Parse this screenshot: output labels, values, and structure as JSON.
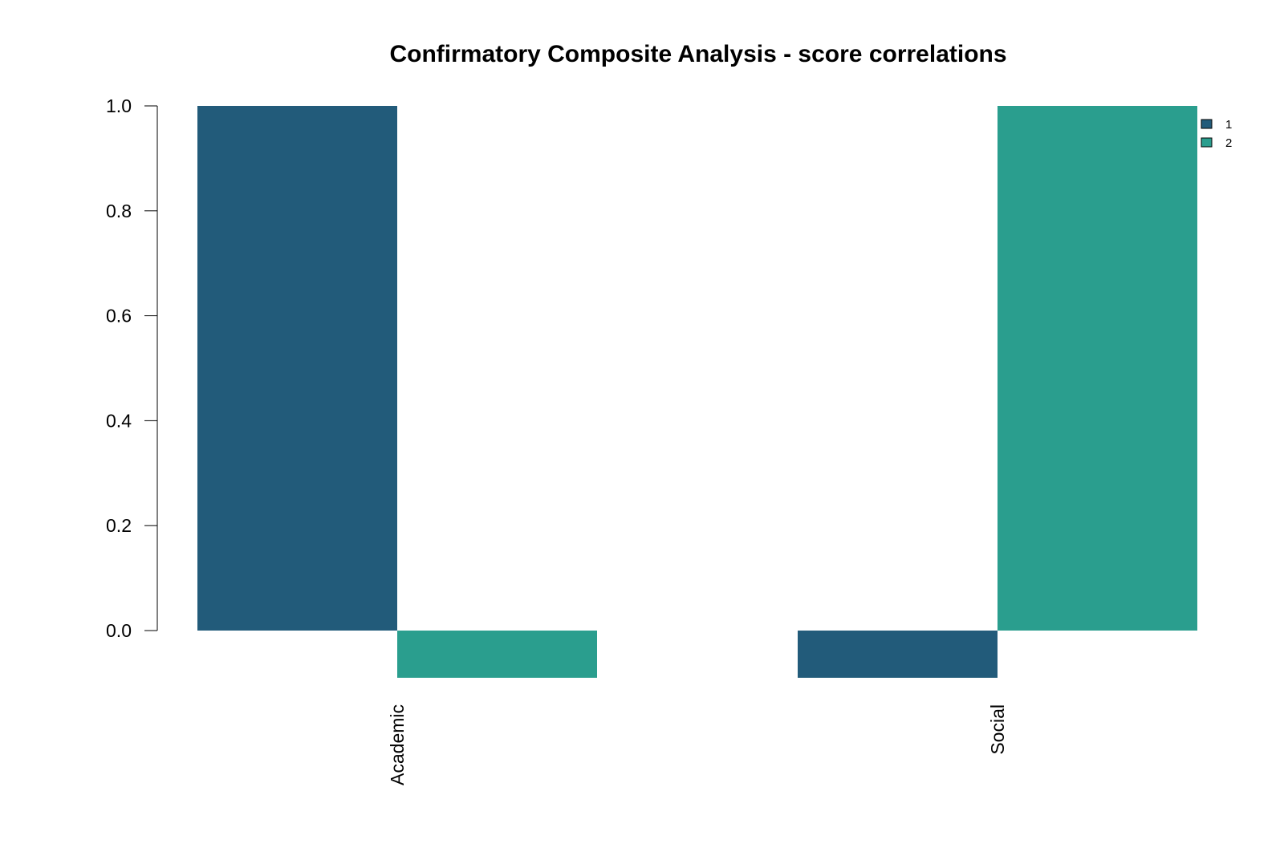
{
  "chart_data": {
    "type": "bar",
    "title": "Confirmatory Composite Analysis - score correlations",
    "xlabel": "",
    "ylabel": "",
    "categories": [
      "Academic",
      "Social"
    ],
    "series": [
      {
        "name": "1",
        "values": [
          1.0,
          -0.09
        ],
        "color": "#225B7A"
      },
      {
        "name": "2",
        "values": [
          -0.09,
          1.0
        ],
        "color": "#2A9E8E"
      }
    ],
    "yticks": [
      0.0,
      0.2,
      0.4,
      0.6,
      0.8,
      1.0
    ],
    "ytick_labels": [
      "0.0",
      "0.2",
      "0.4",
      "0.6",
      "0.8",
      "1.0"
    ],
    "ylim": [
      -0.09,
      1.0
    ],
    "grid": false,
    "legend_position": "top-right"
  }
}
